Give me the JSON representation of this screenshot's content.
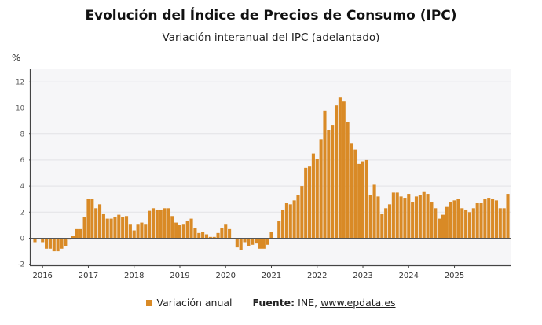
{
  "chart_data": {
    "type": "bar",
    "title": "Evolución del Índice de Precios de Consumo (IPC)",
    "subtitle": "Variación interanual del IPC (adelantado)",
    "ylabel": "%",
    "xlabel": "",
    "ylim": [
      -2,
      13
    ],
    "yticks": [
      -2,
      0,
      2,
      4,
      6,
      8,
      10,
      12
    ],
    "grid": true,
    "start_month": "2015-11",
    "xtick_labels": [
      "2016",
      "2017",
      "2018",
      "2019",
      "2020",
      "2021",
      "2022",
      "2023",
      "2024",
      "2025"
    ],
    "legend_position": "bottom",
    "series": [
      {
        "name": "Variación anual",
        "color": "#d98a26",
        "values": [
          -0.3,
          0.0,
          -0.3,
          -0.8,
          -0.8,
          -1.0,
          -1.0,
          -0.8,
          -0.6,
          -0.1,
          0.2,
          0.7,
          0.7,
          1.6,
          3.0,
          3.0,
          2.3,
          2.6,
          1.9,
          1.5,
          1.5,
          1.6,
          1.8,
          1.6,
          1.7,
          1.1,
          0.6,
          1.1,
          1.2,
          1.1,
          2.1,
          2.3,
          2.2,
          2.2,
          2.3,
          2.3,
          1.7,
          1.2,
          1.0,
          1.1,
          1.3,
          1.5,
          0.8,
          0.4,
          0.5,
          0.3,
          0.1,
          0.1,
          0.4,
          0.8,
          1.1,
          0.7,
          0.0,
          -0.7,
          -0.9,
          -0.3,
          -0.6,
          -0.5,
          -0.4,
          -0.8,
          -0.8,
          -0.5,
          0.5,
          0.0,
          1.3,
          2.2,
          2.7,
          2.6,
          2.9,
          3.3,
          4.0,
          5.4,
          5.5,
          6.5,
          6.1,
          7.6,
          9.8,
          8.3,
          8.7,
          10.2,
          10.8,
          10.5,
          8.9,
          7.3,
          6.8,
          5.7,
          5.9,
          6.0,
          3.3,
          4.1,
          3.2,
          1.9,
          2.3,
          2.6,
          3.5,
          3.5,
          3.2,
          3.1,
          3.4,
          2.8,
          3.2,
          3.3,
          3.6,
          3.4,
          2.8,
          2.3,
          1.5,
          1.8,
          2.4,
          2.8,
          2.9,
          3.0,
          2.3,
          2.2,
          2.0,
          2.3,
          2.7,
          2.7,
          3.0,
          3.1,
          3.0,
          2.9,
          2.3,
          2.3,
          3.4
        ]
      }
    ]
  },
  "legend": {
    "series_label": "Variación anual",
    "source_label": "Fuente:",
    "source_name": "INE,",
    "source_link": "www.epdata.es"
  }
}
